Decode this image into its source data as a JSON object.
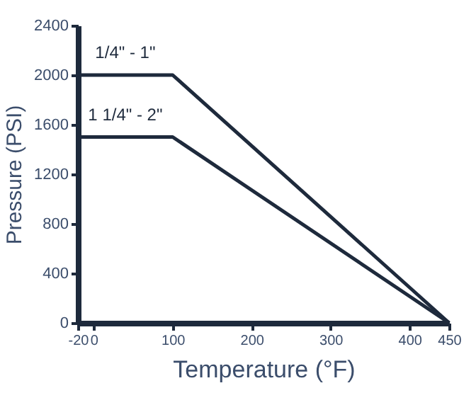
{
  "chart_data": {
    "type": "line",
    "xlabel": "Temperature (°F)",
    "ylabel": "Pressure (PSI)",
    "xlim": [
      -20,
      450
    ],
    "xticks": [
      -20,
      0,
      100,
      200,
      300,
      400,
      450
    ],
    "ylim": [
      0,
      2400
    ],
    "yticks": [
      0,
      400,
      800,
      1200,
      1600,
      2000,
      2400
    ],
    "grid": false,
    "legend": false,
    "marker": "none",
    "line_style": "solid",
    "series": [
      {
        "name": "1/4\" - 1\"",
        "color": "#1e2a3c",
        "x": [
          -20,
          100,
          450
        ],
        "values": [
          2000,
          2000,
          0
        ]
      },
      {
        "name": "1 1/4\" - 2\"",
        "color": "#1e2a3c",
        "x": [
          -20,
          100,
          450
        ],
        "values": [
          1500,
          1500,
          0
        ]
      }
    ]
  }
}
